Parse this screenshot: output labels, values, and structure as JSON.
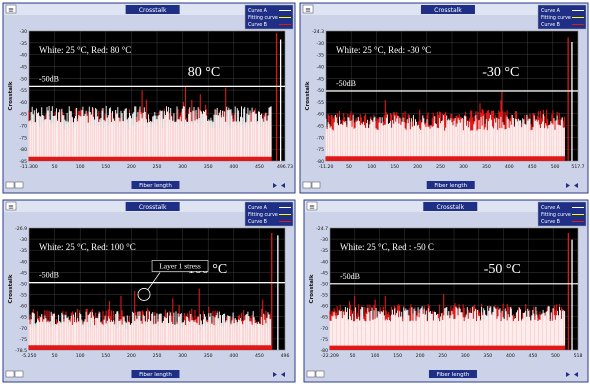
{
  "common": {
    "menu_label": "≡",
    "window_title": "Crosstalk",
    "legend": [
      "Curve A",
      "Fitting curve",
      "Curve B"
    ],
    "ylabel": "Crosstalk",
    "xlabel": "Fiber length",
    "threshold_label": "-50dB",
    "colors": {
      "bg": "#000000",
      "white_trace": "#ffffff",
      "red_trace": "#e01818",
      "grid": "#4a4a4a",
      "frame": "#2c3e8c"
    }
  },
  "chart_data": [
    {
      "type": "line",
      "title": "80 °C",
      "condition": "White: 25 °C, Red: 80 °C",
      "xlim": [
        -11.3,
        496.7
      ],
      "xticks": [
        "-11.300",
        "50",
        "100",
        "150",
        "200",
        "250",
        "300",
        "350",
        "400",
        "450",
        "496.73"
      ],
      "ylim": [
        -85,
        -24
      ],
      "yticks": [
        "-30",
        "-35",
        "-40",
        "-45",
        "-50",
        "-55",
        "-60",
        "-65",
        "-70",
        "-75",
        "-80",
        "-85"
      ],
      "threshold_db": -50,
      "series": [
        {
          "color": "white",
          "noise_floor_db": -67,
          "spread_db": 8
        },
        {
          "color": "red",
          "noise_floor_db": -70,
          "spread_db": 10
        }
      ],
      "peaks": [
        {
          "x": 480,
          "y": -25,
          "color": "red"
        },
        {
          "x": 488,
          "y": -28,
          "color": "white"
        }
      ]
    },
    {
      "type": "line",
      "title": "-30 °C",
      "condition": "White: 25 °C, Red: -30 °C",
      "xlim": [
        -11.2,
        517.7
      ],
      "xticks": [
        "-11.20",
        "50",
        "100",
        "150",
        "200",
        "250",
        "300",
        "350",
        "400",
        "450",
        "500",
        "517.7"
      ],
      "ylim": [
        -80,
        -24.3
      ],
      "yticks": [
        "-24.3",
        "-30",
        "-35",
        "-40",
        "-45",
        "-50",
        "-55",
        "-60",
        "-65",
        "-70",
        "-75",
        "-80"
      ],
      "threshold_db": -50,
      "series": [
        {
          "color": "white",
          "noise_floor_db": -67,
          "spread_db": 7
        },
        {
          "color": "red",
          "noise_floor_db": -66,
          "spread_db": 8
        }
      ],
      "peaks": [
        {
          "x": 497,
          "y": -27,
          "color": "red"
        },
        {
          "x": 505,
          "y": -29,
          "color": "white"
        }
      ]
    },
    {
      "type": "line",
      "title": "100 °C",
      "condition": "White: 25 °C, Red: 100 °C",
      "annotation": "Layer 1 stress",
      "annotation_x": 220,
      "xlim": [
        -5.25,
        496
      ],
      "xticks": [
        "-5.250",
        "50",
        "100",
        "150",
        "200",
        "250",
        "300",
        "350",
        "400",
        "450",
        "496"
      ],
      "ylim": [
        -78.5,
        -26.9
      ],
      "yticks": [
        "-26.9",
        "-30",
        "-35",
        "-40",
        "-45",
        "-50",
        "-55",
        "-60",
        "-65",
        "-70",
        "-75",
        "-78.5"
      ],
      "threshold_db": -50,
      "series": [
        {
          "color": "white",
          "noise_floor_db": -68,
          "spread_db": 6
        },
        {
          "color": "red",
          "noise_floor_db": -70,
          "spread_db": 9
        }
      ],
      "peaks": [
        {
          "x": 470,
          "y": -29,
          "color": "red"
        },
        {
          "x": 482,
          "y": -30,
          "color": "white"
        }
      ]
    },
    {
      "type": "line",
      "title": "-50 °C",
      "condition": "White: 25 °C, Red : -50 C",
      "xlim": [
        -22.2,
        518
      ],
      "xticks": [
        "-22.209",
        "50",
        "100",
        "150",
        "200",
        "250",
        "300",
        "350",
        "400",
        "450",
        "500",
        "518"
      ],
      "ylim": [
        -80,
        -24.7
      ],
      "yticks": [
        "-24.7",
        "-30",
        "-35",
        "-40",
        "-45",
        "-50",
        "-55",
        "-60",
        "-65",
        "-70",
        "-75",
        "-80"
      ],
      "threshold_db": -50,
      "series": [
        {
          "color": "white",
          "noise_floor_db": -67,
          "spread_db": 7
        },
        {
          "color": "red",
          "noise_floor_db": -67,
          "spread_db": 8
        }
      ],
      "peaks": [
        {
          "x": 497,
          "y": -27,
          "color": "red"
        },
        {
          "x": 505,
          "y": -30,
          "color": "white"
        }
      ]
    }
  ]
}
